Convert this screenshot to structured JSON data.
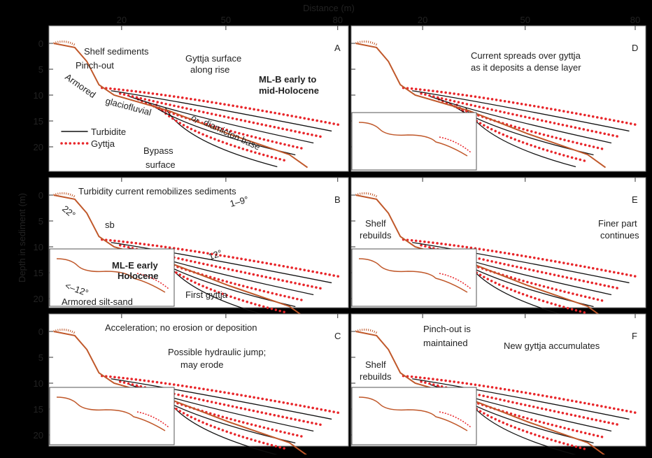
{
  "x_axis": {
    "label": "Distance (m)",
    "ticks": [
      "20",
      "50",
      "80"
    ]
  },
  "y_axis": {
    "label": "Depth in sediment (m)",
    "ticks": [
      "0",
      "5",
      "10",
      "15",
      "20"
    ]
  },
  "legend": [
    "Turbidite",
    "Gyttja"
  ],
  "panels": [
    {
      "label": "A",
      "annotations": [
        "Shelf sediments",
        "Pinch-out",
        "Armored",
        "Gyttja surface",
        "along rise",
        "ML-B early to",
        "mid-Holocene",
        "glaciofluvial",
        "or",
        "diamicton base",
        "Bypass",
        "surface"
      ]
    },
    {
      "label": "B",
      "annotations": [
        "Turbidity current remobilizes sediments",
        "22°",
        "1–9°",
        "sb",
        "12°",
        "ML-E early",
        "Holocene",
        "<–12°",
        "Armored silt-sand",
        "First gyttja"
      ]
    },
    {
      "label": "C",
      "annotations": [
        "Acceleration; no erosion or deposition",
        "Possible hydraulic jump;",
        "may erode"
      ]
    },
    {
      "label": "D",
      "annotations": [
        "Current spreads over gyttja",
        "as it deposits a dense layer"
      ]
    },
    {
      "label": "E",
      "annotations": [
        "Shelf",
        "rebuilds",
        "Finer part",
        "continues"
      ]
    },
    {
      "label": "F",
      "annotations": [
        "Pinch-out is",
        "maintained",
        "New gyttja accumulates",
        "Shelf",
        "rebuilds"
      ]
    }
  ]
}
